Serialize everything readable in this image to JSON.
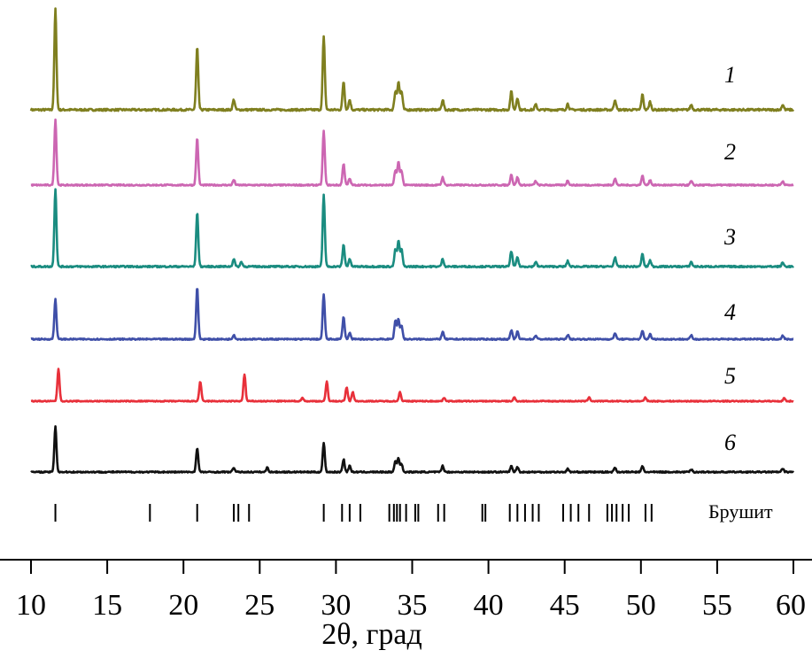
{
  "chart_data": {
    "type": "line",
    "xlabel": "2θ, град",
    "ylabel": "",
    "xlim": [
      10,
      60
    ],
    "xticks": [
      10,
      15,
      20,
      25,
      30,
      35,
      40,
      45,
      50,
      55,
      60
    ],
    "grid": false,
    "series": [
      {
        "name": "1",
        "color": "#7f7f1f",
        "peaks": [
          [
            11.6,
            1.0
          ],
          [
            20.9,
            0.62
          ],
          [
            23.3,
            0.1
          ],
          [
            29.2,
            0.72
          ],
          [
            30.5,
            0.28
          ],
          [
            30.9,
            0.1
          ],
          [
            33.9,
            0.18
          ],
          [
            34.1,
            0.28
          ],
          [
            34.3,
            0.18
          ],
          [
            37.0,
            0.1
          ],
          [
            41.5,
            0.18
          ],
          [
            41.9,
            0.12
          ],
          [
            43.1,
            0.05
          ],
          [
            45.2,
            0.06
          ],
          [
            48.3,
            0.1
          ],
          [
            50.1,
            0.15
          ],
          [
            50.6,
            0.08
          ],
          [
            53.3,
            0.05
          ],
          [
            59.3,
            0.05
          ]
        ]
      },
      {
        "name": "2",
        "color": "#cc66b2",
        "peaks": [
          [
            11.6,
            1.0
          ],
          [
            20.9,
            0.72
          ],
          [
            23.3,
            0.08
          ],
          [
            29.2,
            0.82
          ],
          [
            30.5,
            0.33
          ],
          [
            30.9,
            0.1
          ],
          [
            33.9,
            0.22
          ],
          [
            34.1,
            0.35
          ],
          [
            34.3,
            0.22
          ],
          [
            37.0,
            0.12
          ],
          [
            41.5,
            0.16
          ],
          [
            41.9,
            0.12
          ],
          [
            43.1,
            0.06
          ],
          [
            45.2,
            0.07
          ],
          [
            48.3,
            0.1
          ],
          [
            50.1,
            0.14
          ],
          [
            50.6,
            0.08
          ],
          [
            53.3,
            0.06
          ],
          [
            59.3,
            0.06
          ]
        ]
      },
      {
        "name": "3",
        "color": "#1a8c80",
        "peaks": [
          [
            11.6,
            1.0
          ],
          [
            20.9,
            0.7
          ],
          [
            23.3,
            0.1
          ],
          [
            23.8,
            0.06
          ],
          [
            29.2,
            0.92
          ],
          [
            30.5,
            0.28
          ],
          [
            30.9,
            0.1
          ],
          [
            33.9,
            0.22
          ],
          [
            34.1,
            0.33
          ],
          [
            34.3,
            0.22
          ],
          [
            37.0,
            0.1
          ],
          [
            41.5,
            0.2
          ],
          [
            41.9,
            0.12
          ],
          [
            43.1,
            0.06
          ],
          [
            45.2,
            0.07
          ],
          [
            48.3,
            0.12
          ],
          [
            50.1,
            0.16
          ],
          [
            50.6,
            0.08
          ],
          [
            53.3,
            0.06
          ],
          [
            59.3,
            0.05
          ]
        ]
      },
      {
        "name": "4",
        "color": "#3f4fa8",
        "peaks": [
          [
            11.6,
            0.65
          ],
          [
            20.9,
            0.83
          ],
          [
            23.3,
            0.07
          ],
          [
            29.2,
            0.72
          ],
          [
            30.5,
            0.36
          ],
          [
            30.9,
            0.1
          ],
          [
            33.9,
            0.3
          ],
          [
            34.1,
            0.32
          ],
          [
            34.3,
            0.22
          ],
          [
            37.0,
            0.12
          ],
          [
            41.5,
            0.14
          ],
          [
            41.9,
            0.12
          ],
          [
            43.1,
            0.06
          ],
          [
            45.2,
            0.07
          ],
          [
            48.3,
            0.1
          ],
          [
            50.1,
            0.13
          ],
          [
            50.6,
            0.08
          ],
          [
            53.3,
            0.06
          ],
          [
            59.3,
            0.06
          ]
        ]
      },
      {
        "name": "5",
        "color": "#e8303a",
        "peaks": [
          [
            11.8,
            0.62
          ],
          [
            21.1,
            0.38
          ],
          [
            24.0,
            0.52
          ],
          [
            27.8,
            0.07
          ],
          [
            29.4,
            0.38
          ],
          [
            30.7,
            0.27
          ],
          [
            31.1,
            0.18
          ],
          [
            34.2,
            0.18
          ],
          [
            37.1,
            0.07
          ],
          [
            41.7,
            0.07
          ],
          [
            46.6,
            0.08
          ],
          [
            50.3,
            0.07
          ],
          [
            59.4,
            0.06
          ]
        ]
      },
      {
        "name": "6",
        "color": "#111111",
        "peaks": [
          [
            11.6,
            0.72
          ],
          [
            20.9,
            0.38
          ],
          [
            23.3,
            0.07
          ],
          [
            25.5,
            0.07
          ],
          [
            29.2,
            0.45
          ],
          [
            30.5,
            0.2
          ],
          [
            30.9,
            0.1
          ],
          [
            33.9,
            0.17
          ],
          [
            34.1,
            0.22
          ],
          [
            34.3,
            0.12
          ],
          [
            37.0,
            0.1
          ],
          [
            41.5,
            0.09
          ],
          [
            41.9,
            0.08
          ],
          [
            45.2,
            0.05
          ],
          [
            48.3,
            0.07
          ],
          [
            50.1,
            0.09
          ],
          [
            53.3,
            0.04
          ],
          [
            59.3,
            0.05
          ]
        ]
      }
    ],
    "reference": {
      "name": "Брушит",
      "positions": [
        11.6,
        17.8,
        20.9,
        23.3,
        23.6,
        24.3,
        29.2,
        30.4,
        30.9,
        31.6,
        33.5,
        33.8,
        34.0,
        34.2,
        34.6,
        35.2,
        35.4,
        36.7,
        37.1,
        39.6,
        39.8,
        41.4,
        41.9,
        42.4,
        42.9,
        43.3,
        44.9,
        45.4,
        45.9,
        46.6,
        47.8,
        48.1,
        48.4,
        48.8,
        49.2,
        50.3,
        50.7
      ]
    }
  }
}
